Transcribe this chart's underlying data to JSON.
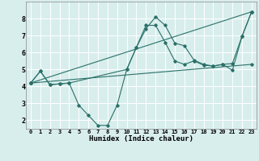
{
  "xlabel": "Humidex (Indice chaleur)",
  "bg_color": "#d8eeed",
  "grid_color": "#ffffff",
  "line_color": "#2a7068",
  "xlim": [
    -0.5,
    23.5
  ],
  "ylim": [
    1.5,
    9.0
  ],
  "xticks": [
    0,
    1,
    2,
    3,
    4,
    5,
    6,
    7,
    8,
    9,
    10,
    11,
    12,
    13,
    14,
    15,
    16,
    17,
    18,
    19,
    20,
    21,
    22,
    23
  ],
  "yticks": [
    2,
    3,
    4,
    5,
    6,
    7,
    8
  ],
  "lines": [
    {
      "x": [
        0,
        1,
        2,
        3,
        4,
        5,
        6,
        7,
        8,
        9,
        10,
        11,
        12,
        13,
        14,
        15,
        16,
        17,
        18,
        19,
        20,
        21,
        22,
        23
      ],
      "y": [
        4.2,
        4.9,
        4.1,
        4.15,
        4.2,
        2.9,
        2.3,
        1.7,
        1.7,
        2.9,
        5.0,
        6.3,
        7.4,
        8.1,
        7.6,
        6.55,
        6.4,
        5.55,
        5.3,
        5.2,
        5.3,
        4.95,
        6.95,
        8.4
      ]
    },
    {
      "x": [
        0,
        23
      ],
      "y": [
        4.2,
        8.4
      ]
    },
    {
      "x": [
        0,
        23
      ],
      "y": [
        4.2,
        5.3
      ]
    },
    {
      "x": [
        0,
        1,
        2,
        3,
        4,
        10,
        11,
        12,
        13,
        14,
        15,
        16,
        17,
        18,
        19,
        20,
        21,
        22,
        23
      ],
      "y": [
        4.2,
        4.9,
        4.1,
        4.15,
        4.2,
        5.0,
        6.3,
        7.6,
        7.6,
        6.6,
        5.5,
        5.3,
        5.5,
        5.25,
        5.2,
        5.3,
        5.35,
        6.95,
        8.4
      ]
    }
  ]
}
